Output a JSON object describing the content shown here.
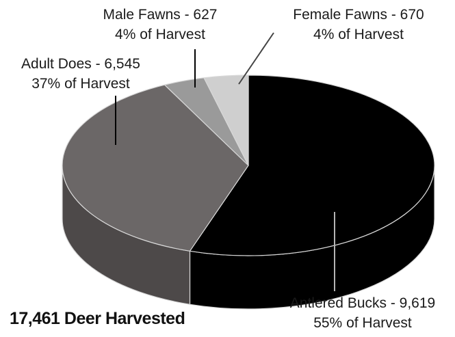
{
  "chart_data": {
    "type": "pie",
    "title": "17,461 Deer Harvested",
    "slices": [
      {
        "name": "Antlered Bucks",
        "value": 9619,
        "percent_label": "55% of Harvest",
        "color": "#000000",
        "side_color": "#000000"
      },
      {
        "name": "Adult Does",
        "value": 6545,
        "percent_label": "37% of Harvest",
        "color": "#6b6767",
        "side_color": "#4d4949"
      },
      {
        "name": "Male Fawns",
        "value": 627,
        "percent_label": "4% of Harvest",
        "color": "#9a9a9a",
        "side_color": "#7a7a7a"
      },
      {
        "name": "Female Fawns",
        "value": 670,
        "percent_label": "4% of Harvest",
        "color": "#cfcfcf",
        "side_color": "#a9a9a9"
      }
    ],
    "labels": [
      {
        "line1": "Antlered Bucks - 9,619",
        "line2": "55% of Harvest"
      },
      {
        "line1": "Adult Does -  6,545",
        "line2": "37% of Harvest"
      },
      {
        "line1": "Male Fawns - 627",
        "line2": "4% of Harvest"
      },
      {
        "line1": "Female Fawns - 670",
        "line2": "4% of Harvest"
      }
    ]
  }
}
